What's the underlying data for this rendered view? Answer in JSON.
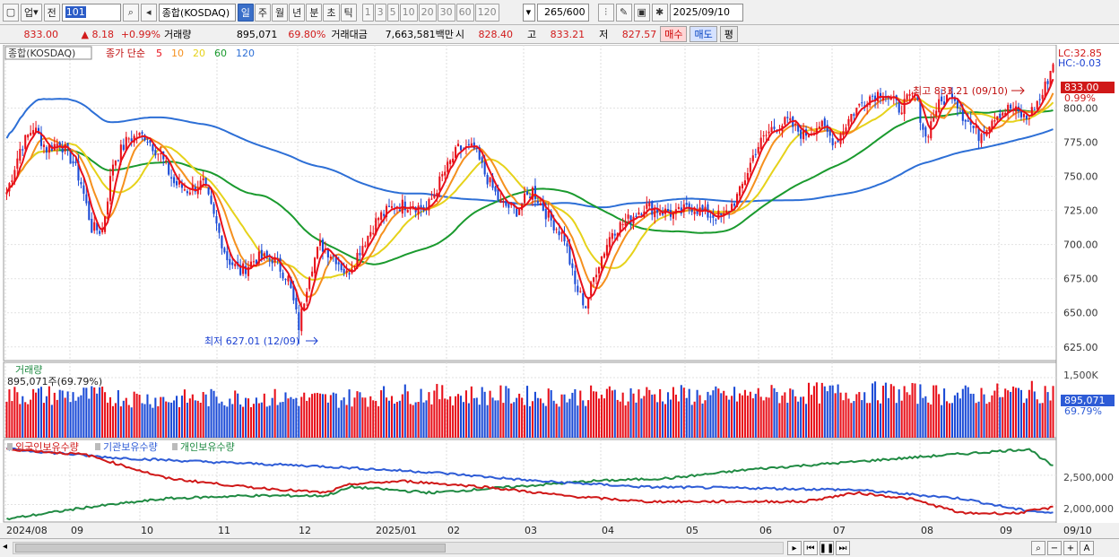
{
  "toolbar": {
    "mode": "업",
    "prev": "전",
    "code": "101",
    "index_name": "종합(KOSDAQ)",
    "periods": [
      "일",
      "주",
      "월",
      "년",
      "분",
      "초",
      "틱"
    ],
    "period_selected": "일",
    "numbers": [
      "1",
      "3",
      "5",
      "10",
      "20",
      "30",
      "60",
      "120"
    ],
    "count": "265",
    "count_max": "/600",
    "date": "2025/09/10"
  },
  "quote": {
    "price": "833.00",
    "change": "▲   8.18",
    "rate": "+0.99%",
    "vol_label": "거래량",
    "vol": "895,071",
    "vol_rate": "69.80%",
    "amt_label": "거래대금",
    "amt": "7,663,581백만",
    "open_label": "시",
    "open": "828.40",
    "high_label": "고",
    "high": "833.21",
    "low_label": "저",
    "low": "827.57",
    "buy": "매수",
    "sell": "매도",
    "eval": "평"
  },
  "legend": {
    "name": "종합(KOSDAQ)",
    "ma_prefix": "종가 단순",
    "ma": [
      {
        "label": "5",
        "color": "#e8101a"
      },
      {
        "label": "10",
        "color": "#f5901e"
      },
      {
        "label": "20",
        "color": "#e6d21a"
      },
      {
        "label": "60",
        "color": "#1a9a2e"
      },
      {
        "label": "120",
        "color": "#2d6fd6"
      }
    ]
  },
  "price_right": {
    "lc": "LC:32.85",
    "hc": "HC:-0.03",
    "last": "833.00",
    "last_pct": "0.99%"
  },
  "annotations": {
    "high": "최고 833.21 (09/10)",
    "low": "최저 627.01 (12/09)"
  },
  "volume": {
    "title": "거래량",
    "value": "895,071주(69.79%)",
    "axis_top": "1,500K",
    "last": "895,071",
    "last_pct": "69.79%"
  },
  "holdings": {
    "labels": [
      "외국인보유수량",
      "기관보유수량",
      "개인보유수량"
    ],
    "colors": [
      "#d01818",
      "#2d5bd6",
      "#1f8a42"
    ],
    "axis": [
      "2,500,000",
      "2,000,000"
    ]
  },
  "x_axis": [
    "2024/08",
    "09",
    "10",
    "11",
    "12",
    "2025/01",
    "02",
    "03",
    "04",
    "05",
    "06",
    "07",
    "08",
    "09"
  ],
  "x_right": "09/10",
  "colors": {
    "up": "#e8101a",
    "down": "#1a4ad6",
    "ma5": "#e8101a",
    "ma10": "#f5901e",
    "ma20": "#e6d21a",
    "ma60": "#1a9a2e",
    "ma120": "#2d6fd6"
  },
  "chart_data": {
    "type": "candlestick",
    "title": "종합(KOSDAQ)",
    "ylim": [
      615,
      845
    ],
    "y_ticks": [
      "625.00",
      "650.00",
      "675.00",
      "700.00",
      "725.00",
      "750.00",
      "775.00",
      "800.00"
    ],
    "close_anchors": [
      [
        0,
        738
      ],
      [
        5,
        770
      ],
      [
        10,
        786
      ],
      [
        15,
        770
      ],
      [
        20,
        775
      ],
      [
        25,
        760
      ],
      [
        28,
        745
      ],
      [
        32,
        712
      ],
      [
        36,
        710
      ],
      [
        40,
        760
      ],
      [
        46,
        778
      ],
      [
        52,
        780
      ],
      [
        58,
        765
      ],
      [
        63,
        745
      ],
      [
        68,
        740
      ],
      [
        74,
        745
      ],
      [
        78,
        720
      ],
      [
        83,
        690
      ],
      [
        88,
        680
      ],
      [
        94,
        690
      ],
      [
        100,
        690
      ],
      [
        106,
        675
      ],
      [
        110,
        640
      ],
      [
        114,
        680
      ],
      [
        118,
        700
      ],
      [
        124,
        690
      ],
      [
        128,
        678
      ],
      [
        134,
        700
      ],
      [
        140,
        720
      ],
      [
        146,
        728
      ],
      [
        152,
        730
      ],
      [
        158,
        725
      ],
      [
        164,
        750
      ],
      [
        170,
        770
      ],
      [
        176,
        770
      ],
      [
        180,
        752
      ],
      [
        186,
        730
      ],
      [
        192,
        725
      ],
      [
        198,
        740
      ],
      [
        204,
        720
      ],
      [
        210,
        705
      ],
      [
        214,
        670
      ],
      [
        218,
        655
      ],
      [
        222,
        682
      ],
      [
        228,
        710
      ],
      [
        234,
        718
      ],
      [
        240,
        728
      ],
      [
        246,
        725
      ],
      [
        252,
        722
      ],
      [
        258,
        728
      ],
      [
        264,
        722
      ],
      [
        270,
        720
      ],
      [
        276,
        738
      ],
      [
        282,
        770
      ],
      [
        288,
        785
      ],
      [
        294,
        790
      ],
      [
        300,
        780
      ],
      [
        306,
        788
      ],
      [
        312,
        775
      ],
      [
        318,
        795
      ],
      [
        324,
        808
      ],
      [
        330,
        812
      ],
      [
        336,
        800
      ],
      [
        342,
        810
      ],
      [
        346,
        778
      ],
      [
        350,
        800
      ],
      [
        356,
        812
      ],
      [
        360,
        795
      ],
      [
        366,
        780
      ],
      [
        372,
        795
      ],
      [
        378,
        800
      ],
      [
        384,
        792
      ],
      [
        390,
        810
      ],
      [
        394,
        833
      ]
    ],
    "high": {
      "value": 833.21,
      "date": "09/10"
    },
    "low": {
      "value": 627.01,
      "date": "12/09"
    },
    "volume_anchors": [
      [
        0,
        1.05
      ],
      [
        30,
        1.05
      ],
      [
        60,
        0.95
      ],
      [
        90,
        1.0
      ],
      [
        120,
        0.95
      ],
      [
        150,
        1.08
      ],
      [
        180,
        1.05
      ],
      [
        210,
        1.02
      ],
      [
        240,
        1.08
      ],
      [
        270,
        1.02
      ],
      [
        300,
        1.1
      ],
      [
        330,
        1.12
      ],
      [
        360,
        1.05
      ],
      [
        394,
        1.15
      ]
    ],
    "foreign_anchors": [
      [
        0,
        2.95
      ],
      [
        30,
        2.85
      ],
      [
        60,
        2.45
      ],
      [
        90,
        2.3
      ],
      [
        120,
        2.2
      ],
      [
        130,
        2.35
      ],
      [
        150,
        2.4
      ],
      [
        180,
        2.3
      ],
      [
        210,
        2.15
      ],
      [
        240,
        2.05
      ],
      [
        270,
        2.05
      ],
      [
        300,
        2.05
      ],
      [
        320,
        2.2
      ],
      [
        340,
        2.1
      ],
      [
        360,
        1.85
      ],
      [
        380,
        1.85
      ],
      [
        394,
        1.95
      ]
    ],
    "inst_anchors": [
      [
        0,
        2.95
      ],
      [
        40,
        2.8
      ],
      [
        80,
        2.72
      ],
      [
        120,
        2.65
      ],
      [
        160,
        2.55
      ],
      [
        200,
        2.4
      ],
      [
        240,
        2.3
      ],
      [
        280,
        2.28
      ],
      [
        320,
        2.25
      ],
      [
        360,
        2.1
      ],
      [
        380,
        1.92
      ],
      [
        394,
        1.85
      ]
    ],
    "retail_anchors": [
      [
        0,
        1.75
      ],
      [
        30,
        1.95
      ],
      [
        60,
        2.1
      ],
      [
        90,
        2.15
      ],
      [
        120,
        2.15
      ],
      [
        130,
        2.3
      ],
      [
        160,
        2.2
      ],
      [
        190,
        2.3
      ],
      [
        220,
        2.4
      ],
      [
        250,
        2.45
      ],
      [
        280,
        2.6
      ],
      [
        310,
        2.7
      ],
      [
        340,
        2.8
      ],
      [
        370,
        2.9
      ],
      [
        385,
        2.95
      ],
      [
        394,
        2.65
      ]
    ]
  }
}
